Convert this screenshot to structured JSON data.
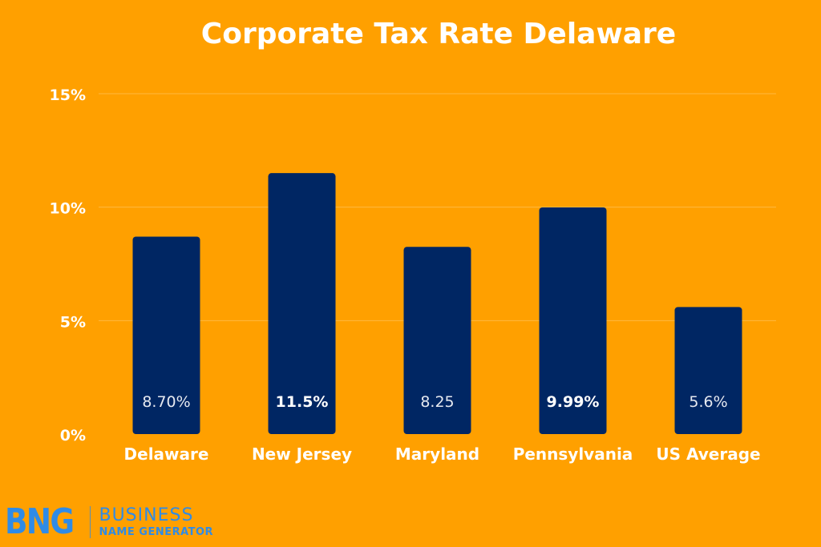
{
  "chart_data": {
    "type": "bar",
    "title": "Corporate Tax Rate Delaware",
    "categories": [
      "Delaware",
      "New Jersey",
      "Maryland",
      "Pennsylvania",
      "US Average"
    ],
    "values": [
      8.7,
      11.5,
      8.25,
      9.99,
      5.6
    ],
    "data_labels": [
      "8.70%",
      "11.5%",
      "8.25",
      "9.99%",
      "5.6%"
    ],
    "y_ticks": [
      "0%",
      "5%",
      "10%",
      "15%"
    ],
    "ylim": [
      0,
      15
    ],
    "grid": true,
    "colors": {
      "background": "#FFA000",
      "bar": "#002663",
      "text": "#ffffff"
    }
  },
  "brand": {
    "mark": "BNG",
    "line1": "BUSINESS",
    "line2": "NAME GENERATOR"
  }
}
